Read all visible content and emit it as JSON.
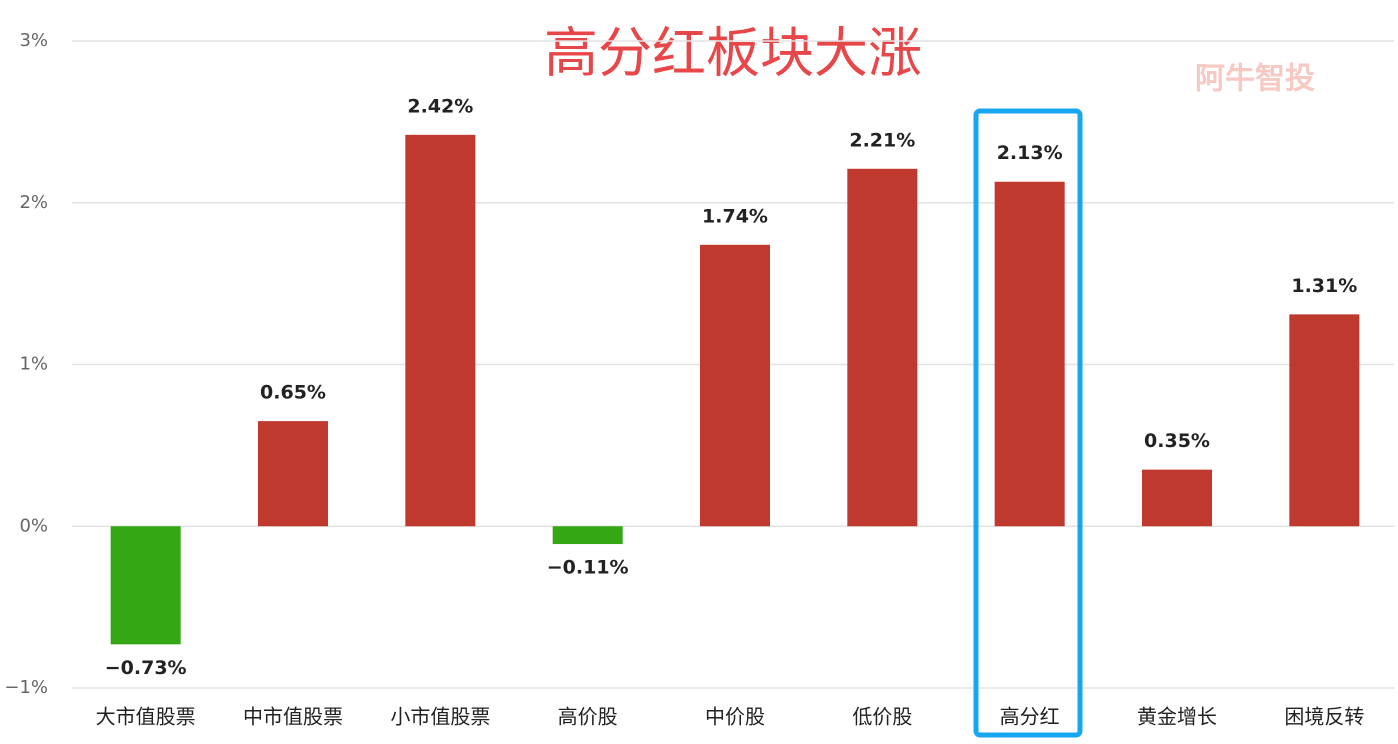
{
  "chart_data": {
    "type": "bar",
    "title": "高分红板块大涨",
    "watermark": "阿牛智投",
    "categories": [
      "大市值股票",
      "中市值股票",
      "小市值股票",
      "高价股",
      "中价股",
      "低价股",
      "高分红",
      "黄金增长",
      "困境反转"
    ],
    "values": [
      -0.73,
      0.65,
      2.42,
      -0.11,
      1.74,
      2.21,
      2.13,
      0.35,
      1.31
    ],
    "value_labels": [
      "−0.73%",
      "0.65%",
      "2.42%",
      "−0.11%",
      "1.74%",
      "2.21%",
      "2.13%",
      "0.35%",
      "1.31%"
    ],
    "positive_color": "#c0392f",
    "negative_color": "#33a814",
    "ylim": [
      -1,
      3
    ],
    "yticks": [
      {
        "value": -1,
        "label": "−1%"
      },
      {
        "value": 0,
        "label": "0%"
      },
      {
        "value": 1,
        "label": "1%"
      },
      {
        "value": 2,
        "label": "2%"
      },
      {
        "value": 3,
        "label": "3%"
      }
    ],
    "grid": true
  }
}
